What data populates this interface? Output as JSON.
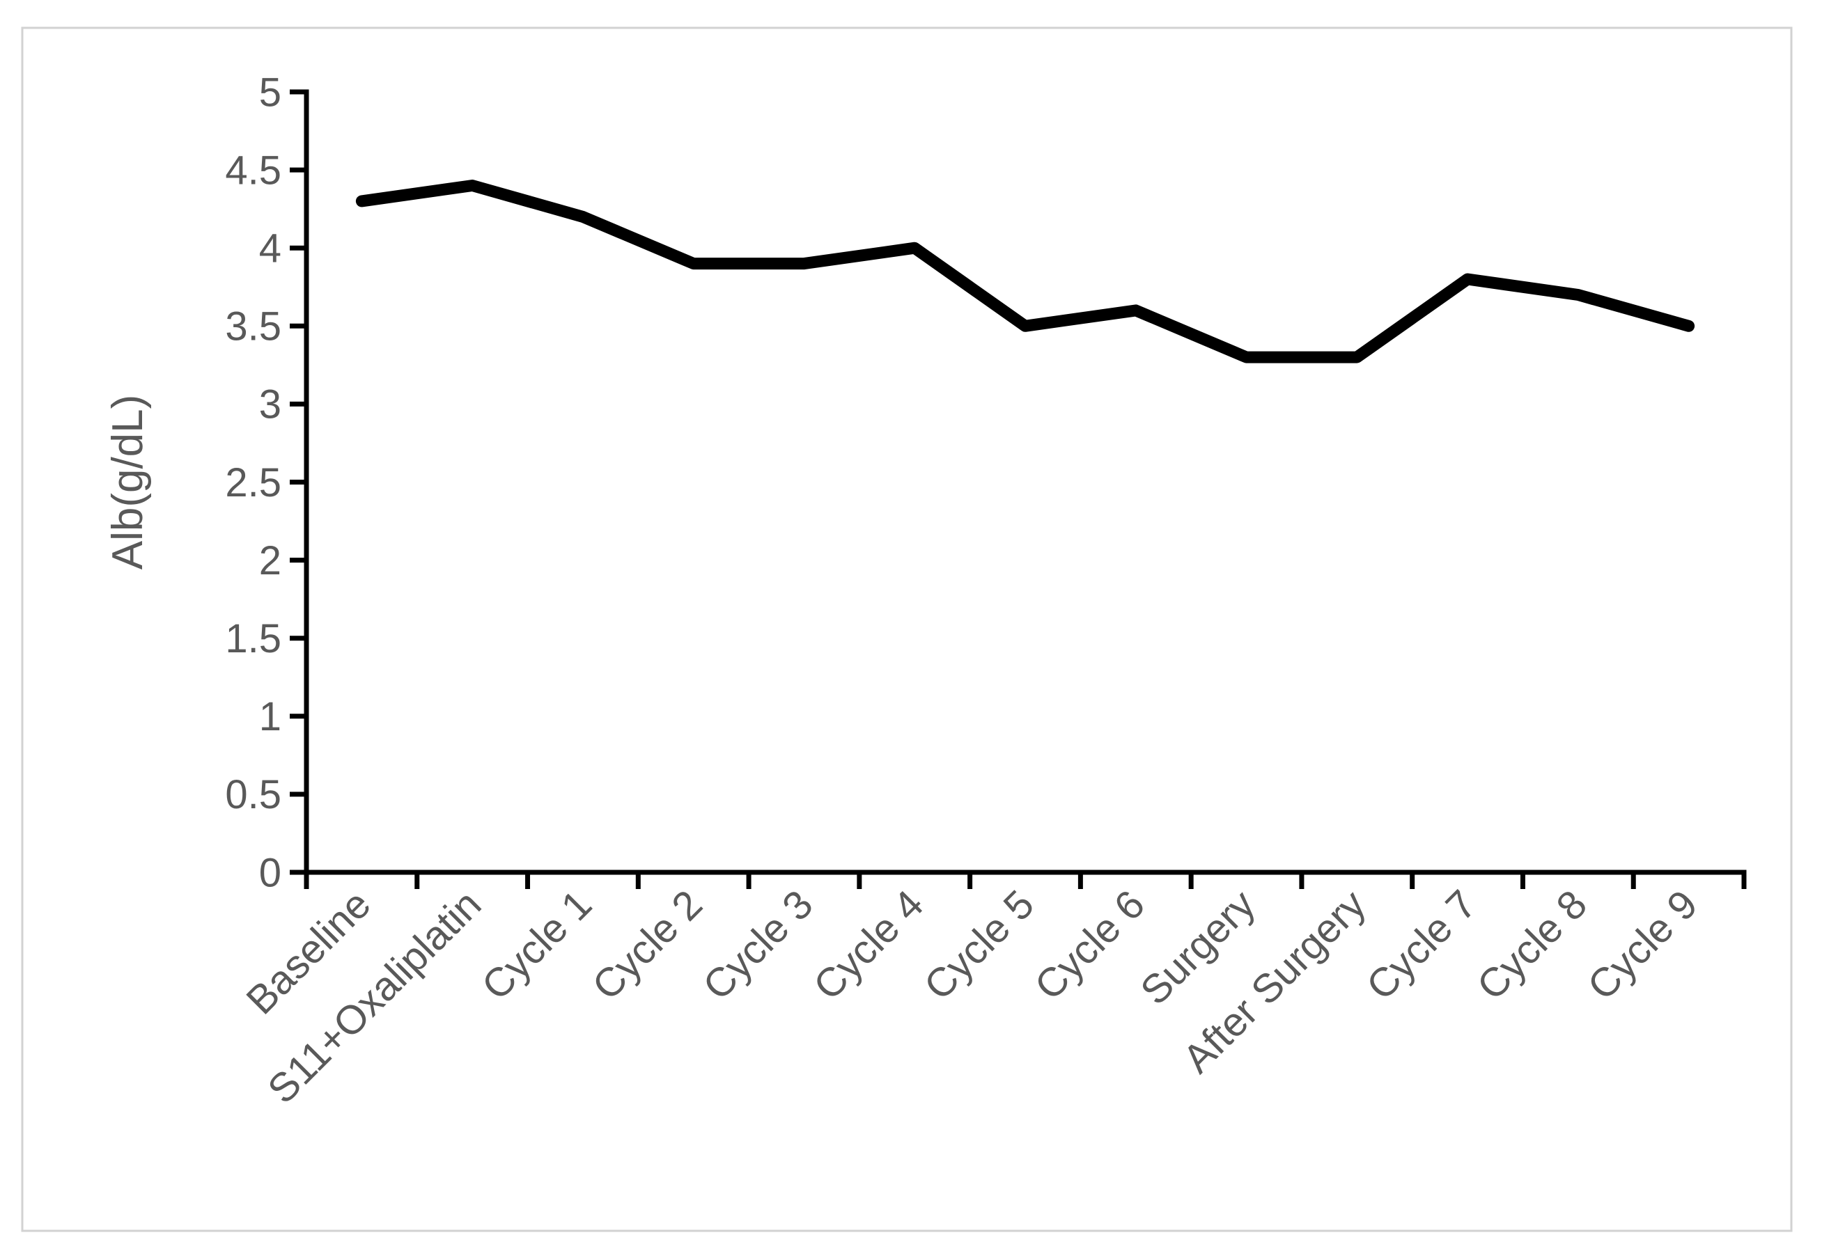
{
  "figure": {
    "background": "#ffffff",
    "frame_border_color": "#d2d2d2"
  },
  "chart_data": {
    "type": "line",
    "title": "",
    "xlabel": "",
    "ylabel": "Alb(g/dL)",
    "categories": [
      "Baseline",
      "S11+Oxaliplatin",
      "Cycle 1",
      "Cycle 2",
      "Cycle 3",
      "Cycle 4",
      "Cycle 5",
      "Cycle 6",
      "Surgery",
      "After Surgery",
      "Cycle 7",
      "Cycle 8",
      "Cycle 9"
    ],
    "values": [
      4.3,
      4.4,
      4.2,
      3.9,
      3.9,
      4.0,
      3.5,
      3.6,
      3.3,
      3.3,
      3.8,
      3.7,
      3.5
    ],
    "ylim": [
      0,
      5
    ],
    "yticks": [
      0,
      0.5,
      1,
      1.5,
      2,
      2.5,
      3,
      3.5,
      4,
      4.5,
      5
    ],
    "ytick_labels": [
      "0",
      "0.5",
      "1",
      "1.5",
      "2",
      "2.5",
      "3",
      "3.5",
      "4",
      "4.5",
      "5"
    ],
    "x_label_rotation_deg": 45,
    "grid": false,
    "legend_position": "none",
    "line_color": "#000000",
    "axis_color": "#000000",
    "label_color": "#595959"
  }
}
